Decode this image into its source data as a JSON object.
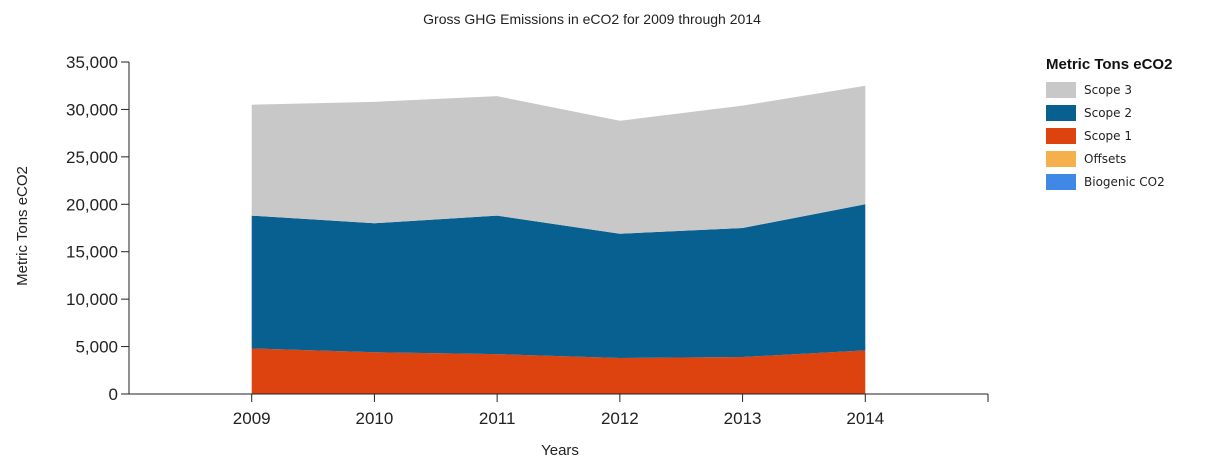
{
  "chart_data": {
    "type": "area",
    "stacked": true,
    "title": "Gross GHG Emissions in eCO2 for 2009 through 2014",
    "xlabel": "Years",
    "ylabel": "Metric Tons eCO2",
    "categories": [
      "2009",
      "2010",
      "2011",
      "2012",
      "2013",
      "2014"
    ],
    "xlim": [
      2008,
      2015
    ],
    "ylim": [
      0,
      35000
    ],
    "yticks": [
      "0",
      "5,000",
      "10,000",
      "15,000",
      "20,000",
      "25,000",
      "30,000",
      "35,000"
    ],
    "ytick_values": [
      0,
      5000,
      10000,
      15000,
      20000,
      25000,
      30000,
      35000
    ],
    "grid": false,
    "legend": {
      "title": "Metric Tons eCO2",
      "position": "right",
      "entries": [
        {
          "name": "Scope 3",
          "color": "#c8c8c8"
        },
        {
          "name": "Scope 2",
          "color": "#07608f"
        },
        {
          "name": "Scope 1",
          "color": "#dc430e"
        },
        {
          "name": "Offsets",
          "color": "#f4b04c"
        },
        {
          "name": "Biogenic CO2",
          "color": "#3f88e6"
        }
      ]
    },
    "series": [
      {
        "name": "Scope 1",
        "color": "#dc430e",
        "values": [
          4800,
          4400,
          4200,
          3800,
          3900,
          4600
        ]
      },
      {
        "name": "Scope 2",
        "color": "#07608f",
        "values": [
          14000,
          13600,
          14600,
          13100,
          13600,
          15400
        ]
      },
      {
        "name": "Scope 3",
        "color": "#c8c8c8",
        "values": [
          11700,
          12800,
          12600,
          11900,
          12900,
          12500
        ]
      },
      {
        "name": "Offsets",
        "color": "#f4b04c",
        "values": [
          0,
          0,
          0,
          0,
          0,
          0
        ]
      },
      {
        "name": "Biogenic CO2",
        "color": "#3f88e6",
        "values": [
          0,
          0,
          0,
          0,
          0,
          0
        ]
      }
    ]
  }
}
